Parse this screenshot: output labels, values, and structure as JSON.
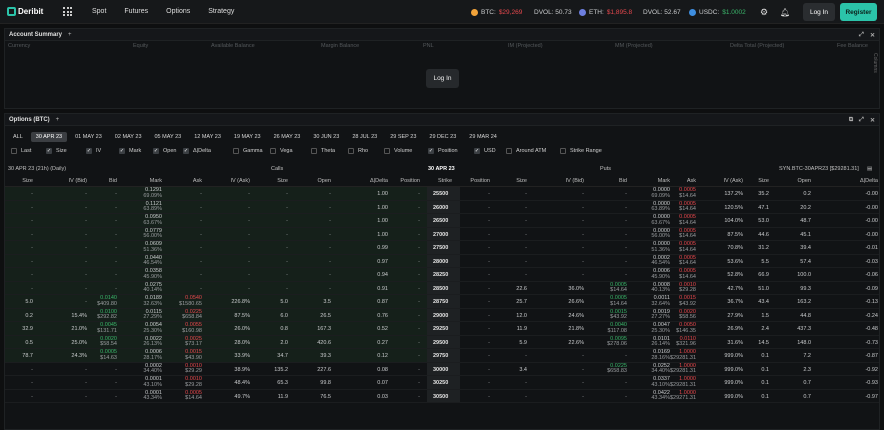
{
  "nav": {
    "brand": "Deribit",
    "items": [
      "Spot",
      "Futures",
      "Options",
      "Strategy"
    ],
    "login": "Log In",
    "register": "Register"
  },
  "ticker": {
    "btc_label": "BTC:",
    "btc_price": "$29,269",
    "dvol1_label": "DVOL: 50.73",
    "eth_label": "ETH:",
    "eth_price": "$1,895.8",
    "dvol2_label": "DVOL: 52.67",
    "usdc_label": "USDC:",
    "usdc_price": "$1.0002"
  },
  "account": {
    "title": "Account Summary",
    "columns": [
      "Currency",
      "Equity",
      "Available Balance",
      "Margin Balance",
      "PNL",
      "IM (Projected)",
      "MM (Projected)",
      "Delta Total (Projected)",
      "Fee Balance"
    ],
    "login": "Log In",
    "side": "Columns"
  },
  "options": {
    "title": "Options (BTC)",
    "tabs": [
      "ALL",
      "30 APR 23",
      "01 MAY 23",
      "02 MAY 23",
      "05 MAY 23",
      "12 MAY 23",
      "19 MAY 23",
      "26 MAY 23",
      "30 JUN 23",
      "28 JUL 23",
      "29 SEP 23",
      "29 DEC 23",
      "29 MAR 24"
    ],
    "checks": [
      {
        "label": "Last",
        "on": false
      },
      {
        "label": "Size",
        "on": true
      },
      {
        "label": "IV",
        "on": true
      },
      {
        "label": "Mark",
        "on": true
      },
      {
        "label": "Open",
        "on": true
      },
      {
        "label": "Δ|Delta",
        "on": true
      },
      {
        "label": "Gamma",
        "on": false
      },
      {
        "label": "Vega",
        "on": false
      },
      {
        "label": "Theta",
        "on": false
      },
      {
        "label": "Rho",
        "on": false
      },
      {
        "label": "Volume",
        "on": false
      },
      {
        "label": "Position",
        "on": true
      },
      {
        "label": "USD",
        "on": true
      },
      {
        "label": "Around ATM",
        "on": false
      },
      {
        "label": "Strike Range",
        "on": false
      }
    ],
    "expiry_info": "30 APR 23 (21h) (Daily)",
    "calls": "Calls",
    "expiry": "30 APR 23",
    "puts": "Puts",
    "synthetic": "SYN.BTC-30APR23 [$29281.31]",
    "call_cols": [
      "Size",
      "IV (Bid)",
      "Bid",
      "Mark",
      "Ask",
      "IV (Ask)",
      "Size",
      "Open",
      "Δ|Delta",
      "Position"
    ],
    "strike_col": "Strike",
    "put_cols": [
      "Position",
      "Size",
      "IV (Bid)",
      "Bid",
      "Mark",
      "Ask",
      "IV (Ask)",
      "Size",
      "Open",
      "Δ|Delta"
    ]
  },
  "rows": [
    {
      "k": "25500",
      "c": [
        "-",
        "-",
        "-",
        "0.1291|69.09%",
        "-",
        "-",
        "-",
        "-",
        "1.00",
        "-"
      ],
      "p": [
        "-",
        "-",
        "-",
        "-",
        "0.0000|69.09%",
        "0.0005|$14.64",
        "137.2%",
        "35.2",
        "0.2",
        "-0.00"
      ]
    },
    {
      "k": "26000",
      "c": [
        "-",
        "-",
        "-",
        "0.1121|63.89%",
        "-",
        "-",
        "-",
        "-",
        "1.00",
        "-"
      ],
      "p": [
        "-",
        "-",
        "-",
        "-",
        "0.0000|63.89%",
        "0.0005|$14.64",
        "120.5%",
        "47.1",
        "20.2",
        "-0.00"
      ]
    },
    {
      "k": "26500",
      "c": [
        "-",
        "-",
        "-",
        "0.0950|63.67%",
        "-",
        "-",
        "-",
        "-",
        "1.00",
        "-"
      ],
      "p": [
        "-",
        "-",
        "-",
        "-",
        "0.0000|63.67%",
        "0.0005|$14.64",
        "104.0%",
        "53.0",
        "48.7",
        "-0.00"
      ]
    },
    {
      "k": "27000",
      "c": [
        "-",
        "-",
        "-",
        "0.0779|56.00%",
        "-",
        "-",
        "-",
        "-",
        "1.00",
        "-"
      ],
      "p": [
        "-",
        "-",
        "-",
        "-",
        "0.0000|56.00%",
        "0.0005|$14.64",
        "87.5%",
        "44.6",
        "45.1",
        "-0.00"
      ]
    },
    {
      "k": "27500",
      "c": [
        "-",
        "-",
        "-",
        "0.0609|51.36%",
        "-",
        "-",
        "-",
        "-",
        "0.99",
        "-"
      ],
      "p": [
        "-",
        "-",
        "-",
        "-",
        "0.0000|51.36%",
        "0.0005|$14.64",
        "70.8%",
        "31.2",
        "39.4",
        "-0.01"
      ]
    },
    {
      "k": "28000",
      "c": [
        "-",
        "-",
        "-",
        "0.0440|46.54%",
        "-",
        "-",
        "-",
        "-",
        "0.97",
        "-"
      ],
      "p": [
        "-",
        "-",
        "-",
        "-",
        "0.0002|46.54%",
        "0.0005|$14.64",
        "53.6%",
        "5.5",
        "57.4",
        "-0.03"
      ]
    },
    {
      "k": "28250",
      "c": [
        "-",
        "-",
        "-",
        "0.0358|45.90%",
        "-",
        "-",
        "-",
        "-",
        "0.94",
        "-"
      ],
      "p": [
        "-",
        "-",
        "-",
        "-",
        "0.0006|45.90%",
        "0.0005|$14.64",
        "52.8%",
        "66.9",
        "100.0",
        "-0.06"
      ]
    },
    {
      "k": "28500",
      "c": [
        "-",
        "-",
        "-",
        "0.0275|40.14%",
        "-",
        "-",
        "-",
        "-",
        "0.91",
        "-"
      ],
      "p": [
        "-",
        "22.6",
        "36.0%",
        "0.0005|$14.64",
        "0.0008|40.13%",
        "0.0010|$29.28",
        "42.7%",
        "51.0",
        "99.3",
        "-0.09"
      ]
    },
    {
      "k": "28750",
      "c": [
        "5.0",
        "-",
        "0.0140|$409.80",
        "0.0189|32.63%",
        "0.0540|$1580.65",
        "226.8%",
        "5.0",
        "3.5",
        "0.87",
        "-"
      ],
      "p": [
        "-",
        "25.7",
        "26.6%",
        "0.0005|$14.64",
        "0.0011|32.64%",
        "0.0015|$43.92",
        "36.7%",
        "43.4",
        "163.2",
        "-0.13"
      ]
    },
    {
      "k": "29000",
      "c": [
        "0.2",
        "15.4%",
        "0.0100|$292.82",
        "0.0115|27.29%",
        "0.0225|$658.84",
        "87.5%",
        "6.0",
        "26.5",
        "0.76",
        "-"
      ],
      "p": [
        "-",
        "12.0",
        "24.6%",
        "0.0015|$43.92",
        "0.0019|27.27%",
        "0.0020|$58.56",
        "27.9%",
        "1.5",
        "44.8",
        "-0.24"
      ]
    },
    {
      "k": "29250",
      "c": [
        "32.9",
        "21.0%",
        "0.0045|$131.71",
        "0.0054|25.30%",
        "0.0055|$160.98",
        "26.0%",
        "0.8",
        "167.3",
        "0.52",
        "-"
      ],
      "p": [
        "-",
        "11.9",
        "21.8%",
        "0.0040|$117.08",
        "0.0047|25.30%",
        "0.0050|$146.35",
        "26.9%",
        "2.4",
        "437.3",
        "-0.48"
      ]
    },
    {
      "k": "29500",
      "c": [
        "0.5",
        "25.0%",
        "0.0020|$58.54",
        "0.0022|26.13%",
        "0.0025|$73.17",
        "28.0%",
        "2.0",
        "420.6",
        "0.27",
        "-"
      ],
      "p": [
        "-",
        "5.9",
        "22.6%",
        "0.0095|$278.06",
        "0.0101|26.14%",
        "0.0110|$321.96",
        "31.6%",
        "14.5",
        "148.0",
        "-0.73"
      ]
    },
    {
      "k": "29750",
      "c": [
        "78.7",
        "24.3%",
        "0.0005|$14.63",
        "0.0006|28.17%",
        "0.0015|$43.90",
        "33.9%",
        "34.7",
        "39.3",
        "0.12",
        "-"
      ],
      "p": [
        "-",
        "-",
        "-",
        "-",
        "0.0169|28.16%",
        "1.0000|$29281.31",
        "999.0%",
        "0.1",
        "7.2",
        "-0.87"
      ]
    },
    {
      "k": "30000",
      "c": [
        "-",
        "-",
        "-",
        "0.0002|34.40%",
        "0.0010|$29.29",
        "38.9%",
        "135.2",
        "227.6",
        "0.08",
        "-"
      ],
      "p": [
        "-",
        "3.4",
        "-",
        "0.0225|$658.83",
        "0.0252|34.40%",
        "1.0000|$29281.31",
        "999.0%",
        "0.1",
        "2.3",
        "-0.92"
      ]
    },
    {
      "k": "30250",
      "c": [
        "-",
        "-",
        "-",
        "0.0001|43.10%",
        "0.0010|$29.28",
        "48.4%",
        "65.3",
        "99.8",
        "0.07",
        "-"
      ],
      "p": [
        "-",
        "-",
        "-",
        "-",
        "0.0337|43.10%",
        "1.0000|$29281.31",
        "999.0%",
        "0.1",
        "0.7",
        "-0.93"
      ]
    },
    {
      "k": "30500",
      "c": [
        "-",
        "-",
        "-",
        "0.0001|43.34%",
        "0.0005|$14.64",
        "49.7%",
        "11.9",
        "76.5",
        "0.03",
        "-"
      ],
      "p": [
        "-",
        "-",
        "-",
        "-",
        "0.0422|43.34%",
        "1.0000|$29271.31",
        "999.0%",
        "0.1",
        "0.7",
        "-0.97"
      ]
    }
  ],
  "colors": {
    "accent": "#2bc3a9",
    "bid": "#3ab56a",
    "ask": "#e5484d"
  }
}
